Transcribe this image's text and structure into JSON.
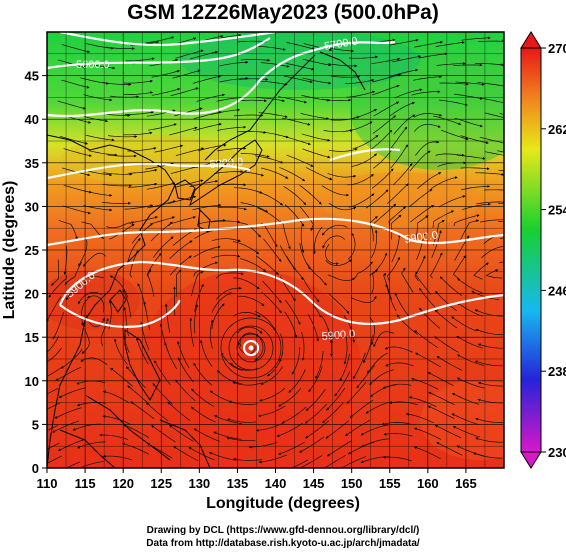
{
  "title": "GSM 12Z26May2023 (500.0hPa)",
  "xlabel": "Longitude (degrees)",
  "ylabel": "Latitude  (degrees)",
  "x_ticks": [
    "110",
    "115",
    "120",
    "125",
    "130",
    "135",
    "140",
    "145",
    "150",
    "155",
    "160",
    "165"
  ],
  "y_ticks": [
    "0",
    "5",
    "10",
    "15",
    "20",
    "25",
    "30",
    "35",
    "40",
    "45"
  ],
  "colorbar_ticks": [
    "270",
    "262",
    "254",
    "246",
    "238",
    "230"
  ],
  "contour_labels": [
    "5600.0",
    "5700.0",
    "5900.0",
    "5900.0",
    "5900.0",
    "5800.0"
  ],
  "footer": {
    "line1": "Drawing by DCL (https://www.gfd-dennou.org/library/dcl/)",
    "line2": "Data from http://database.rish.kyoto-u.ac.jp/arch/jmadata/"
  },
  "chart_data": {
    "type": "heatmap",
    "title": "GSM 12Z26May2023 (500.0hPa)",
    "xlabel": "Longitude (degrees)",
    "ylabel": "Latitude  (degrees)",
    "xlim": [
      110,
      170
    ],
    "ylim": [
      0,
      50
    ],
    "color_range": [
      230,
      270
    ],
    "colorbar_ticks": [
      270,
      262,
      254,
      246,
      238,
      230
    ],
    "contour_levels": [
      5600,
      5700,
      5800,
      5900
    ],
    "grid": true,
    "colors": {
      "high": "#e8201a",
      "mid_warm": "#f0b020",
      "mid": "#1fd03a",
      "cool": "#18c8e8",
      "low": "#2020d0",
      "min": "#d818c8"
    }
  }
}
